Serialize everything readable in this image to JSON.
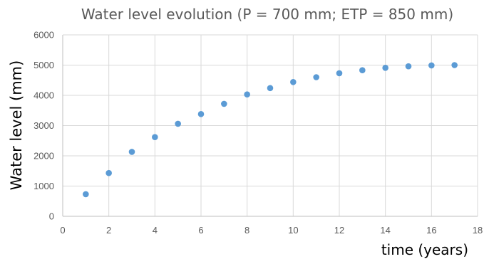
{
  "chart_data": {
    "type": "scatter",
    "title": "Water level evolution (P = 700 mm; ETP = 850 mm)",
    "xlabel": "time (years)",
    "ylabel": "Water level (mm)",
    "xlim": [
      0,
      18
    ],
    "ylim": [
      0,
      6000
    ],
    "x_ticks": [
      0,
      2,
      4,
      6,
      8,
      10,
      12,
      14,
      16,
      18
    ],
    "y_ticks": [
      0,
      1000,
      2000,
      3000,
      4000,
      5000,
      6000
    ],
    "grid": true,
    "legend": "none",
    "marker_color": "#5b9bd5",
    "series": [
      {
        "x": [
          1,
          2,
          3,
          4,
          5,
          6,
          7,
          8,
          9,
          10,
          11,
          12,
          13,
          14,
          15,
          16,
          17
        ],
        "y": [
          730,
          1430,
          2130,
          2620,
          3060,
          3380,
          3720,
          4030,
          4240,
          4440,
          4600,
          4730,
          4830,
          4910,
          4960,
          4990,
          5000
        ]
      }
    ]
  }
}
